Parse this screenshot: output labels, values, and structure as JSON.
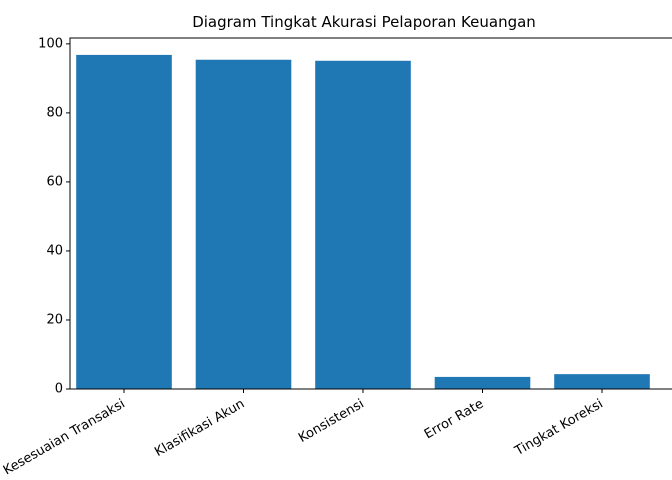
{
  "chart_data": {
    "type": "bar",
    "title": "Diagram Tingkat Akurasi Pelaporan Keuangan",
    "categories": [
      "Kesesuaian Transaksi",
      "Klasifikasi Akun",
      "Konsistensi",
      "Error Rate",
      "Tingkat Koreksi"
    ],
    "values": [
      96.8,
      95.4,
      95.1,
      3.5,
      4.3
    ],
    "color": "#1f77b4",
    "ylim": [
      0,
      101.7
    ],
    "yticks": [
      0,
      20,
      40,
      60,
      80,
      100
    ],
    "grid": false
  }
}
